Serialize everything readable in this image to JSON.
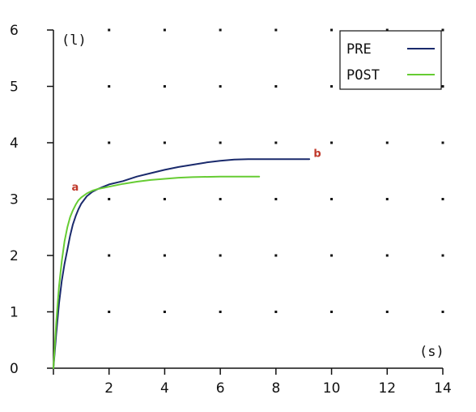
{
  "chart_data": {
    "type": "line",
    "xlabel": "(s)",
    "ylabel": "(l)",
    "xlim": [
      0,
      14
    ],
    "ylim": [
      0,
      6
    ],
    "x_ticks": [
      0,
      2,
      4,
      6,
      8,
      10,
      12,
      14
    ],
    "x_tick_labels": [
      "",
      "2",
      "4",
      "6",
      "8",
      "10",
      "12",
      "14"
    ],
    "y_ticks": [
      0,
      1,
      2,
      3,
      4,
      5,
      6
    ],
    "y_tick_labels": [
      "0",
      "1",
      "2",
      "3",
      "4",
      "5",
      "6"
    ],
    "grid": "dotted",
    "legend": "top-right",
    "series": [
      {
        "name": "PRE",
        "color": "#1a2a6c",
        "x": [
          0,
          0.1,
          0.2,
          0.3,
          0.4,
          0.5,
          0.6,
          0.7,
          0.8,
          0.9,
          1.0,
          1.2,
          1.4,
          1.6,
          1.8,
          2.0,
          2.5,
          3.0,
          3.5,
          4.0,
          4.5,
          5.0,
          5.5,
          6.0,
          6.5,
          7.0,
          8.0,
          9.2
        ],
        "y": [
          0,
          0.6,
          1.15,
          1.55,
          1.85,
          2.1,
          2.35,
          2.55,
          2.7,
          2.82,
          2.92,
          3.05,
          3.13,
          3.18,
          3.22,
          3.26,
          3.32,
          3.4,
          3.46,
          3.52,
          3.57,
          3.61,
          3.65,
          3.68,
          3.7,
          3.71,
          3.71,
          3.71
        ]
      },
      {
        "name": "POST",
        "color": "#66cc33",
        "x": [
          0,
          0.1,
          0.2,
          0.3,
          0.4,
          0.5,
          0.6,
          0.7,
          0.8,
          0.9,
          1.0,
          1.2,
          1.4,
          1.6,
          1.8,
          2.0,
          2.5,
          3.0,
          3.5,
          4.0,
          4.5,
          5.0,
          6.0,
          7.0,
          7.4
        ],
        "y": [
          0,
          0.8,
          1.45,
          1.9,
          2.25,
          2.5,
          2.68,
          2.8,
          2.9,
          2.98,
          3.03,
          3.1,
          3.15,
          3.18,
          3.2,
          3.22,
          3.27,
          3.31,
          3.34,
          3.36,
          3.38,
          3.39,
          3.4,
          3.4,
          3.4
        ]
      }
    ],
    "annotations": [
      {
        "text": "a",
        "x": 0.8,
        "y": 3.15
      },
      {
        "text": "b",
        "x": 9.5,
        "y": 3.75
      }
    ]
  }
}
